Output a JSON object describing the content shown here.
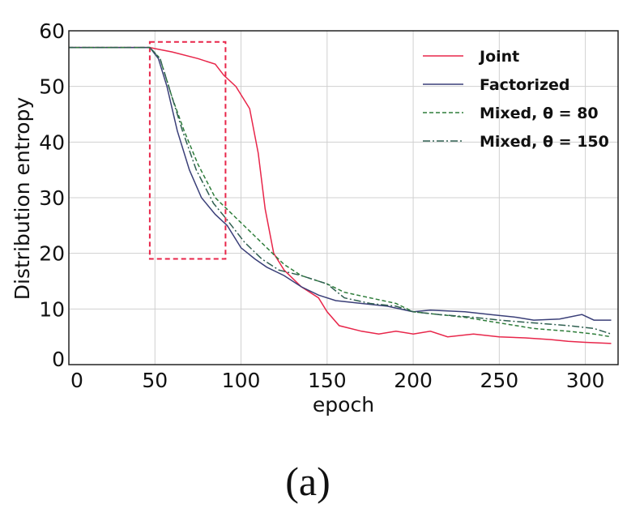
{
  "chart_data": {
    "type": "line",
    "title": "",
    "xlabel": "epoch",
    "ylabel": "Distribution entropy",
    "xlim": [
      0,
      319
    ],
    "ylim": [
      0,
      60
    ],
    "xticks": [
      "0",
      "50",
      "100",
      "150",
      "200",
      "250",
      "300"
    ],
    "yticks": [
      "0",
      "10",
      "20",
      "30",
      "40",
      "50",
      "60"
    ],
    "grid": true,
    "legend_position": "top-right",
    "highlight_box": {
      "x": [
        47,
        91
      ],
      "y": [
        19,
        58
      ],
      "color": "#e8264a",
      "style": "dashed"
    },
    "series": [
      {
        "name": "Joint",
        "color": "#e8264a",
        "style": "solid",
        "x": [
          0,
          47,
          50,
          60,
          75,
          85,
          90,
          97,
          105,
          110,
          114,
          119,
          125,
          135,
          145,
          150,
          157,
          170,
          180,
          190,
          200,
          210,
          220,
          235,
          250,
          265,
          280,
          290,
          300,
          315
        ],
        "y": [
          57,
          57,
          56.8,
          56.2,
          55,
          54,
          52,
          50,
          46,
          38,
          28,
          20,
          17,
          14,
          12,
          9.5,
          7,
          6,
          5.5,
          6,
          5.5,
          6,
          5,
          5.5,
          5,
          4.8,
          4.5,
          4.2,
          4,
          3.8
        ]
      },
      {
        "name": "Factorized",
        "color": "#3a3f78",
        "style": "solid",
        "x": [
          0,
          47,
          52,
          57,
          63,
          70,
          77,
          85,
          92,
          100,
          108,
          115,
          125,
          135,
          145,
          155,
          170,
          185,
          200,
          210,
          230,
          245,
          260,
          270,
          285,
          298,
          305,
          315
        ],
        "y": [
          57,
          57,
          55,
          50,
          42,
          35,
          30,
          27,
          25,
          21,
          19,
          17.5,
          16,
          14,
          12.5,
          11.5,
          11,
          10.5,
          9.5,
          9.8,
          9.5,
          9,
          8.5,
          8,
          8.2,
          9,
          8,
          8
        ]
      },
      {
        "name": "Mixed, θ = 80",
        "color": "#2e7d3a",
        "style": "dashed",
        "x": [
          0,
          47,
          53,
          60,
          67,
          75,
          85,
          95,
          105,
          115,
          125,
          135,
          150,
          160,
          175,
          190,
          200,
          215,
          230,
          250,
          270,
          290,
          305,
          315
        ],
        "y": [
          57,
          57,
          55,
          48,
          42,
          36,
          30,
          27,
          24,
          21,
          18,
          16,
          14.5,
          13,
          12,
          11,
          9.5,
          9,
          8.5,
          7.5,
          6.5,
          6,
          5.5,
          5
        ]
      },
      {
        "name": "Mixed, θ = 150",
        "color": "#2f5f50",
        "style": "dashdot",
        "x": [
          0,
          47,
          53,
          59,
          66,
          74,
          84,
          92,
          102,
          112,
          122,
          135,
          150,
          160,
          175,
          190,
          200,
          215,
          235,
          250,
          270,
          290,
          305,
          315
        ],
        "y": [
          57,
          57,
          55,
          49,
          42,
          35,
          29,
          26,
          22,
          19,
          17,
          16,
          14.5,
          12,
          11,
          10.5,
          9.5,
          9,
          8.5,
          8,
          7.5,
          7,
          6.5,
          5.5
        ]
      }
    ]
  },
  "caption": "(a)"
}
